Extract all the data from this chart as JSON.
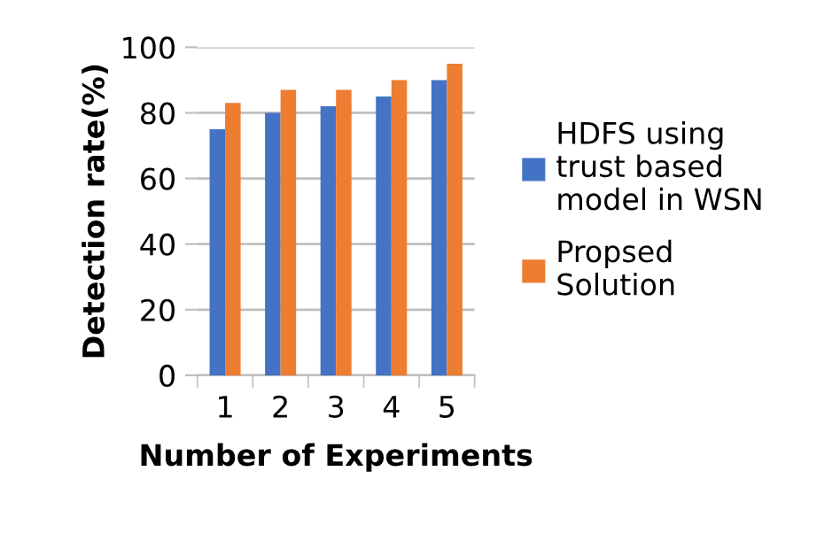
{
  "chart_data": {
    "type": "bar",
    "xlabel": "Number of Experiments",
    "ylabel": "Detection rate(%)",
    "categories": [
      "1",
      "2",
      "3",
      "4",
      "5"
    ],
    "series": [
      {
        "name": "HDFS using trust based model in WSN",
        "color": "#4472c4",
        "values": [
          75,
          80,
          82,
          85,
          90
        ]
      },
      {
        "name": "Propsed Solution",
        "color": "#ed7d31",
        "values": [
          83,
          87,
          87,
          90,
          95
        ]
      }
    ],
    "ylim": [
      0,
      100
    ],
    "yticks": [
      0,
      20,
      40,
      60,
      80,
      100
    ],
    "grid": "y",
    "legend": "right"
  }
}
